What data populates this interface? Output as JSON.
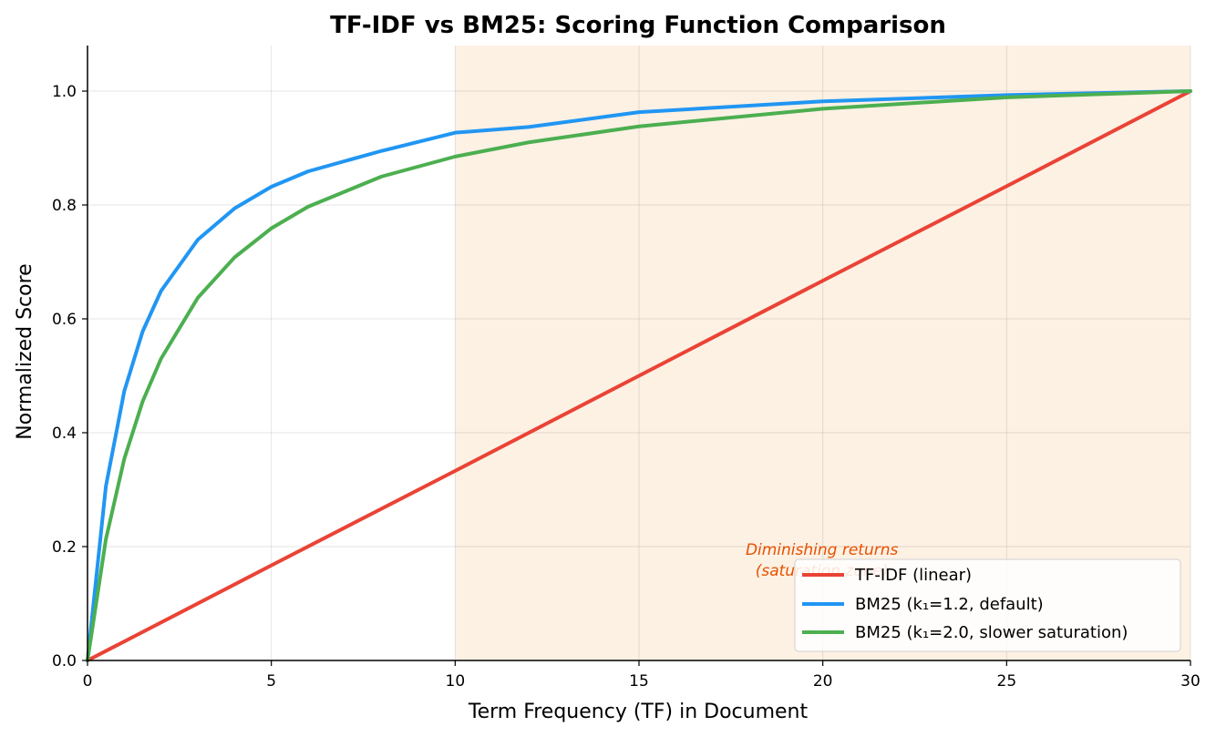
{
  "chart_data": {
    "type": "line",
    "title": "TF-IDF vs BM25: Scoring Function Comparison",
    "xlabel": "Term Frequency (TF) in Document",
    "ylabel": "Normalized Score",
    "xlim": [
      0,
      30
    ],
    "ylim": [
      0,
      1.08
    ],
    "xticks": [
      0,
      5,
      10,
      15,
      20,
      25,
      30
    ],
    "yticks": [
      0.0,
      0.2,
      0.4,
      0.6,
      0.8,
      1.0
    ],
    "xtick_labels": [
      "0",
      "5",
      "10",
      "15",
      "20",
      "25",
      "30"
    ],
    "ytick_labels": [
      "0.0",
      "0.2",
      "0.4",
      "0.6",
      "0.8",
      "1.0"
    ],
    "grid": true,
    "legend_position": "bottom-right",
    "shaded_region": {
      "x_from": 10,
      "x_to": 30,
      "color": "#fdf1e4"
    },
    "annotation": {
      "lines": [
        "Diminishing returns",
        "(saturation zone)"
      ],
      "x": 20,
      "color": "#e65100"
    },
    "series": [
      {
        "name": "TF-IDF (linear)",
        "color": "#ea4335",
        "x": [
          0,
          5,
          10,
          15,
          20,
          25,
          30
        ],
        "y": [
          0.0,
          0.167,
          0.333,
          0.5,
          0.667,
          0.833,
          1.0
        ]
      },
      {
        "name": "BM25 (k₁=1.2, default)",
        "color": "#2196f3",
        "x": [
          0,
          0.5,
          1,
          1.5,
          2,
          3,
          4,
          5,
          6,
          8,
          10,
          12,
          15,
          20,
          25,
          30
        ],
        "y": [
          0.0,
          0.306,
          0.473,
          0.578,
          0.649,
          0.739,
          0.794,
          0.832,
          0.859,
          0.895,
          0.927,
          0.937,
          0.963,
          0.982,
          0.993,
          1.0
        ]
      },
      {
        "name": "BM25 (k₁=2.0, slower saturation)",
        "color": "#4caf50",
        "x": [
          0,
          0.5,
          1,
          1.5,
          2,
          3,
          4,
          5,
          6,
          8,
          10,
          12,
          15,
          20,
          25,
          30
        ],
        "y": [
          0.0,
          0.213,
          0.354,
          0.455,
          0.53,
          0.637,
          0.708,
          0.759,
          0.797,
          0.85,
          0.885,
          0.91,
          0.938,
          0.969,
          0.989,
          1.0
        ]
      }
    ]
  }
}
